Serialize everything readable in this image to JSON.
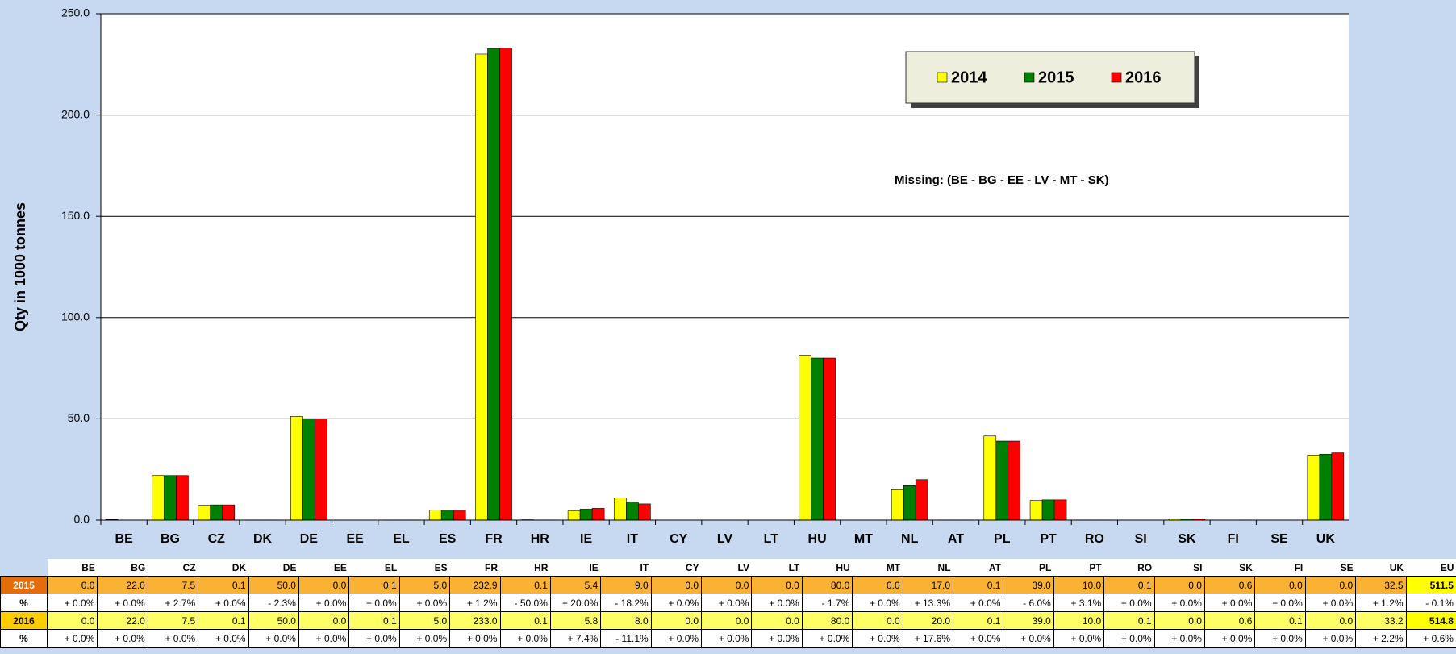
{
  "chart_data": {
    "type": "bar",
    "y_axis_label": "Qty in 1000 tonnes",
    "annotation": "Missing: (BE - BG  - EE -  LV -  MT - SK)",
    "categories": [
      "BE",
      "BG",
      "CZ",
      "DK",
      "DE",
      "EE",
      "EL",
      "ES",
      "FR",
      "HR",
      "IE",
      "IT",
      "CY",
      "LV",
      "LT",
      "HU",
      "MT",
      "NL",
      "AT",
      "PL",
      "PT",
      "RO",
      "SI",
      "SK",
      "FI",
      "SE",
      "UK"
    ],
    "series": [
      {
        "name": "2014",
        "color": "#ffff00",
        "values": [
          0.3,
          22.0,
          7.3,
          0.1,
          51.2,
          0,
          0.1,
          5.0,
          230.1,
          0.2,
          4.5,
          11.0,
          0,
          0,
          0,
          81.4,
          0,
          15.0,
          0.1,
          41.5,
          9.7,
          0.1,
          0,
          0.6,
          0,
          0,
          32.1
        ]
      },
      {
        "name": "2015",
        "color": "#008000",
        "values": [
          0.0,
          22.0,
          7.5,
          0.1,
          50.0,
          0.0,
          0.1,
          5.0,
          232.9,
          0.1,
          5.4,
          9.0,
          0.0,
          0.0,
          0.0,
          80.0,
          0.0,
          17.0,
          0.1,
          39.0,
          10.0,
          0.1,
          0.0,
          0.6,
          0.0,
          0.0,
          32.5
        ],
        "value_labels": [
          "0.0",
          "22.0",
          "7.5",
          "0.1",
          "50.0",
          "0.0",
          "0.1",
          "5.0",
          "232.9",
          "0.1",
          "5.4",
          "9.0",
          "0.0",
          "0.0",
          "0.0",
          "80.0",
          "0.0",
          "17.0",
          "0.1",
          "39.0",
          "10.0",
          "0.1",
          "0.0",
          "0.6",
          "0.0",
          "0.0",
          "32.5"
        ]
      },
      {
        "name": "2016",
        "color": "#ff0000",
        "values": [
          0.0,
          22.0,
          7.5,
          0.1,
          50.0,
          0.0,
          0.1,
          5.0,
          233.0,
          0.1,
          5.8,
          8.0,
          0.0,
          0.0,
          0.0,
          80.0,
          0.0,
          20.0,
          0.1,
          39.0,
          10.0,
          0.1,
          0.0,
          0.6,
          0.1,
          0.0,
          33.2
        ],
        "value_labels": [
          "0.0",
          "22.0",
          "7.5",
          "0.1",
          "50.0",
          "0.0",
          "0.1",
          "5.0",
          "233.0",
          "0.1",
          "5.8",
          "8.0",
          "0.0",
          "0.0",
          "0.0",
          "80.0",
          "0.0",
          "20.0",
          "0.1",
          "39.0",
          "10.0",
          "0.1",
          "0.0",
          "0.6",
          "0.1",
          "0.0",
          "33.2"
        ]
      }
    ],
    "ylim": [
      0,
      250
    ],
    "yticks": [
      {
        "value": 0,
        "label": "0.0"
      },
      {
        "value": 50,
        "label": "50.0"
      },
      {
        "value": 100,
        "label": "100.0"
      },
      {
        "value": 150,
        "label": "150.0"
      },
      {
        "value": 200,
        "label": "200.0"
      },
      {
        "value": 250,
        "label": "250.0"
      }
    ],
    "grid": true,
    "legend": "top-right"
  },
  "table": {
    "total_label": "EU",
    "pct_label": "%",
    "totals": [
      "511.5",
      "514.8"
    ],
    "pct_2015": [
      "+ 0.0%",
      "+ 0.0%",
      "+ 2.7%",
      "+ 0.0%",
      "- 2.3%",
      "+ 0.0%",
      "+ 0.0%",
      "+ 0.0%",
      "+ 1.2%",
      "- 50.0%",
      "+ 20.0%",
      "- 18.2%",
      "+ 0.0%",
      "+ 0.0%",
      "+ 0.0%",
      "- 1.7%",
      "+ 0.0%",
      "+ 13.3%",
      "+ 0.0%",
      "- 6.0%",
      "+ 3.1%",
      "+ 0.0%",
      "+ 0.0%",
      "+ 0.0%",
      "+ 0.0%",
      "+ 0.0%",
      "+ 1.2%",
      "- 0.1%"
    ],
    "pct_2016": [
      "+ 0.0%",
      "+ 0.0%",
      "+ 0.0%",
      "+ 0.0%",
      "+ 0.0%",
      "+ 0.0%",
      "+ 0.0%",
      "+ 0.0%",
      "+ 0.0%",
      "+ 0.0%",
      "+ 7.4%",
      "- 11.1%",
      "+ 0.0%",
      "+ 0.0%",
      "+ 0.0%",
      "+ 0.0%",
      "+ 0.0%",
      "+ 17.6%",
      "+ 0.0%",
      "+ 0.0%",
      "+ 0.0%",
      "+ 0.0%",
      "+ 0.0%",
      "+ 0.0%",
      "+ 0.0%",
      "+ 0.0%",
      "+ 2.2%",
      "+ 0.6%"
    ]
  }
}
